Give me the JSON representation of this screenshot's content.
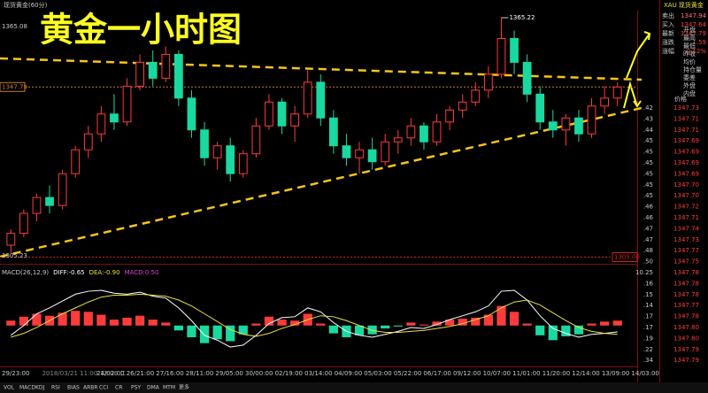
{
  "screen": {
    "window_title": "现货黄金(60分)",
    "big_title": "黄金一小时图",
    "symbol": "XAU 现货黄金",
    "quote": [
      [
        "卖出",
        "1347.94"
      ],
      [
        "买入",
        "1347.64"
      ],
      [
        "最新",
        "1347.79"
      ],
      [
        "涨跌",
        "1.59"
      ],
      [
        "涨幅",
        "0.12%"
      ]
    ],
    "quote_labels": [
      "开盘",
      "最高",
      "最低",
      "昨收",
      "均价",
      "持仓量",
      "委差",
      "外盘",
      "内盘"
    ],
    "ticks_header": "价格",
    "axis_column": [
      ".42",
      ".43",
      ".44",
      ".45",
      ".45",
      ".45",
      ".45",
      ".45",
      ".45",
      ".46",
      ".46",
      ".47",
      ".47",
      ".48",
      ".50",
      "10.25",
      ".16",
      ".15",
      ".14",
      ".17",
      ".17",
      ".19",
      ".22",
      ".34"
    ],
    "tick_prices": [
      "1347.73",
      "1347.71",
      "1347.71",
      "1347.69",
      "1347.69",
      "1347.69",
      "1347.69",
      "1347.70",
      "1347.70",
      "1347.72",
      "1347.71",
      "1347.74",
      "1347.73",
      "1347.77",
      "1347.75",
      "1347.78",
      "1347.78",
      "1347.78",
      "1347.77",
      "1347.78",
      "1347.80",
      "1347.80",
      "1347.79",
      "1347.79"
    ],
    "x_labels": [
      "29/23:00",
      "2018/03/21 11:00-12:00 二",
      "24/02:00",
      "26/21:00",
      "27/16:00",
      "28/11:00",
      "29/05:00",
      "30/00:00",
      "02/19:00",
      "03/14:00",
      "04/09:00",
      "05/03:00",
      "05/22:00",
      "06/17:00",
      "09/12:00",
      "10/07:00",
      "11/01:00",
      "11/20:00",
      "12/14:00",
      "13/09:00",
      "14/03:00"
    ],
    "tabs": [
      "VOL",
      "MACD",
      "KDJ",
      "RSI",
      "BIAS",
      "ARBR",
      "CCI",
      "CR",
      "PSY",
      "DMA",
      "MTM",
      "更多"
    ]
  },
  "chart_data": [
    {
      "type": "candlestick",
      "ylim": [
        1304,
        1367
      ],
      "up_color": "#ff3b3b",
      "down_color": "#19d9a0",
      "top_label": "1365.08",
      "low_label": "1305.23",
      "peak": {
        "value": 1365.22,
        "label": "1365.22"
      },
      "reference_lines": [
        {
          "value": 1347.79,
          "label": "1347.79",
          "color": "#c87a2a"
        },
        {
          "value": 1305,
          "label": "1305.00",
          "color": "#d02020"
        }
      ],
      "candles": [
        [
          1308,
          1312,
          1306,
          1311
        ],
        [
          1311,
          1317,
          1310,
          1316
        ],
        [
          1316,
          1321,
          1314,
          1320
        ],
        [
          1320,
          1323,
          1316,
          1318
        ],
        [
          1318,
          1327,
          1317,
          1326
        ],
        [
          1326,
          1333,
          1325,
          1332
        ],
        [
          1332,
          1338,
          1330,
          1336
        ],
        [
          1336,
          1343,
          1334,
          1341
        ],
        [
          1341,
          1346,
          1337,
          1339
        ],
        [
          1339,
          1350,
          1338,
          1348
        ],
        [
          1348,
          1356,
          1347,
          1354
        ],
        [
          1354,
          1357,
          1348,
          1350
        ],
        [
          1350,
          1358,
          1349,
          1356
        ],
        [
          1356,
          1357,
          1343,
          1345
        ],
        [
          1345,
          1347,
          1335,
          1337
        ],
        [
          1337,
          1339,
          1328,
          1330
        ],
        [
          1330,
          1334,
          1327,
          1333
        ],
        [
          1333,
          1335,
          1324,
          1326
        ],
        [
          1326,
          1332,
          1325,
          1331
        ],
        [
          1331,
          1340,
          1330,
          1338
        ],
        [
          1338,
          1346,
          1337,
          1344
        ],
        [
          1344,
          1345,
          1336,
          1338
        ],
        [
          1338,
          1343,
          1334,
          1341
        ],
        [
          1341,
          1352,
          1340,
          1349
        ],
        [
          1349,
          1351,
          1338,
          1340
        ],
        [
          1340,
          1342,
          1331,
          1333
        ],
        [
          1333,
          1336,
          1328,
          1330
        ],
        [
          1330,
          1334,
          1326,
          1332
        ],
        [
          1332,
          1335,
          1327,
          1329
        ],
        [
          1329,
          1336,
          1328,
          1334
        ],
        [
          1334,
          1337,
          1331,
          1335
        ],
        [
          1335,
          1340,
          1333,
          1338
        ],
        [
          1338,
          1339,
          1332,
          1334
        ],
        [
          1334,
          1341,
          1333,
          1339
        ],
        [
          1339,
          1343,
          1337,
          1342
        ],
        [
          1342,
          1346,
          1340,
          1344
        ],
        [
          1344,
          1349,
          1343,
          1347
        ],
        [
          1347,
          1353,
          1345,
          1351
        ],
        [
          1351,
          1365.22,
          1350,
          1360
        ],
        [
          1360,
          1362,
          1351,
          1354
        ],
        [
          1354,
          1356,
          1344,
          1346
        ],
        [
          1346,
          1348,
          1337,
          1339
        ],
        [
          1339,
          1342,
          1335,
          1337
        ],
        [
          1337,
          1341,
          1333,
          1340
        ],
        [
          1340,
          1342,
          1334,
          1336
        ],
        [
          1336,
          1345,
          1335,
          1343
        ],
        [
          1343,
          1348,
          1341,
          1345
        ],
        [
          1345,
          1349,
          1343,
          1347.79
        ]
      ]
    },
    {
      "type": "macd",
      "title": "MACD(26,12,9)",
      "diff_label": "DIFF:-0.65",
      "dea_label": "DEA:-0.90",
      "macd_label": "MACD:0.50",
      "ylim": [
        -4,
        4.5
      ],
      "histogram": [
        0.5,
        0.9,
        1.2,
        1.0,
        1.3,
        1.5,
        1.4,
        1.1,
        0.6,
        0.8,
        1.0,
        0.6,
        0.3,
        -0.5,
        -1.2,
        -1.8,
        -1.4,
        -1.6,
        -0.9,
        0.2,
        0.9,
        0.6,
        0.5,
        1.2,
        0.2,
        -0.8,
        -1.2,
        -1.0,
        -0.9,
        -0.3,
        -0.1,
        0.3,
        0.1,
        0.4,
        0.6,
        0.7,
        0.8,
        1.1,
        2.0,
        1.4,
        0.2,
        -1.0,
        -1.5,
        -1.1,
        -0.9,
        0.2,
        0.4,
        0.5
      ],
      "series": [
        {
          "name": "DIFF",
          "color": "#ffffff",
          "values": [
            -1.0,
            0.0,
            1.2,
            1.8,
            2.5,
            3.2,
            3.5,
            3.6,
            3.3,
            3.2,
            3.4,
            3.0,
            2.8,
            1.8,
            0.5,
            -1.0,
            -1.5,
            -2.2,
            -2.0,
            -1.0,
            0.2,
            0.8,
            0.9,
            1.8,
            1.4,
            0.3,
            -0.6,
            -1.0,
            -1.2,
            -0.9,
            -0.6,
            -0.2,
            -0.3,
            0.1,
            0.6,
            1.0,
            1.4,
            2.0,
            3.5,
            3.6,
            2.6,
            1.0,
            -0.3,
            -0.8,
            -1.2,
            -0.9,
            -0.8,
            -0.65
          ]
        },
        {
          "name": "DEA",
          "color": "#e8e040",
          "values": [
            -1.2,
            -0.8,
            -0.2,
            0.5,
            1.2,
            1.8,
            2.4,
            2.9,
            3.1,
            3.1,
            3.2,
            3.1,
            3.0,
            2.6,
            2.0,
            1.2,
            0.4,
            -0.4,
            -0.9,
            -1.1,
            -0.8,
            -0.3,
            0.1,
            0.6,
            1.0,
            0.9,
            0.5,
            0.0,
            -0.5,
            -0.7,
            -0.7,
            -0.6,
            -0.5,
            -0.3,
            -0.1,
            0.2,
            0.6,
            1.0,
            1.8,
            2.4,
            2.6,
            2.1,
            1.3,
            0.5,
            -0.2,
            -0.6,
            -0.8,
            -0.9
          ]
        }
      ],
      "up_color": "#ff3b3b",
      "down_color": "#19d9a0"
    }
  ]
}
